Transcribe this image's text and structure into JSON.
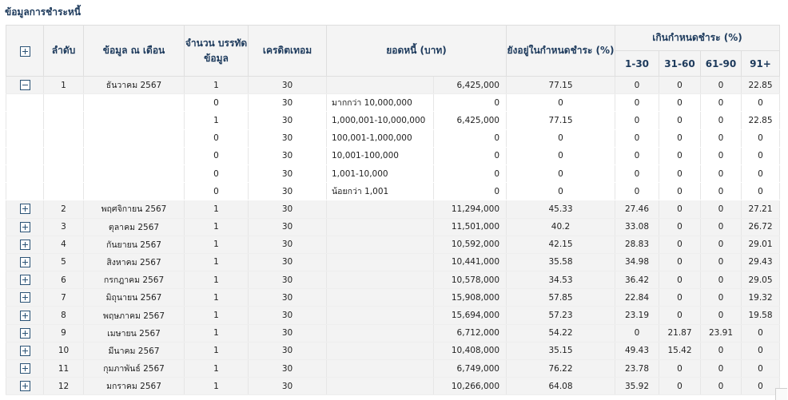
{
  "title": "ข้อมูลการชำระหนี้",
  "headers": {
    "seq": "ลำดับ",
    "month": "ข้อมูล ณ เดือน",
    "count": "จำนวน บรรทัดข้อมูล",
    "credit": "เครดิตเทอม",
    "amount": "ยอดหนี้ (บาท)",
    "on_time": "ยังอยู่ในกำหนดชำระ (%)",
    "overdue": "เกินกำหนดชำระ (%)",
    "b1": "1-30",
    "b2": "31-60",
    "b3": "61-90",
    "b4": "91+"
  },
  "rows": [
    {
      "seq": "1",
      "month": "ธันวาคม 2567",
      "count": "1",
      "credit": "30",
      "amount": "6,425,000",
      "on_time": "77.15",
      "b1": "0",
      "b2": "0",
      "b3": "0",
      "b4": "22.85",
      "expanded": true,
      "details": [
        {
          "count": "0",
          "credit": "30",
          "range": "มากกว่า 10,000,000",
          "amount": "0",
          "on_time": "0",
          "b1": "0",
          "b2": "0",
          "b3": "0",
          "b4": "0"
        },
        {
          "count": "1",
          "credit": "30",
          "range": "1,000,001-10,000,000",
          "amount": "6,425,000",
          "on_time": "77.15",
          "b1": "0",
          "b2": "0",
          "b3": "0",
          "b4": "22.85"
        },
        {
          "count": "0",
          "credit": "30",
          "range": "100,001-1,000,000",
          "amount": "0",
          "on_time": "0",
          "b1": "0",
          "b2": "0",
          "b3": "0",
          "b4": "0"
        },
        {
          "count": "0",
          "credit": "30",
          "range": "10,001-100,000",
          "amount": "0",
          "on_time": "0",
          "b1": "0",
          "b2": "0",
          "b3": "0",
          "b4": "0"
        },
        {
          "count": "0",
          "credit": "30",
          "range": "1,001-10,000",
          "amount": "0",
          "on_time": "0",
          "b1": "0",
          "b2": "0",
          "b3": "0",
          "b4": "0"
        },
        {
          "count": "0",
          "credit": "30",
          "range": "น้อยกว่า 1,001",
          "amount": "0",
          "on_time": "0",
          "b1": "0",
          "b2": "0",
          "b3": "0",
          "b4": "0"
        }
      ]
    },
    {
      "seq": "2",
      "month": "พฤศจิกายน 2567",
      "count": "1",
      "credit": "30",
      "amount": "11,294,000",
      "on_time": "45.33",
      "b1": "27.46",
      "b2": "0",
      "b3": "0",
      "b4": "27.21"
    },
    {
      "seq": "3",
      "month": "ตุลาคม 2567",
      "count": "1",
      "credit": "30",
      "amount": "11,501,000",
      "on_time": "40.2",
      "b1": "33.08",
      "b2": "0",
      "b3": "0",
      "b4": "26.72"
    },
    {
      "seq": "4",
      "month": "กันยายน 2567",
      "count": "1",
      "credit": "30",
      "amount": "10,592,000",
      "on_time": "42.15",
      "b1": "28.83",
      "b2": "0",
      "b3": "0",
      "b4": "29.01"
    },
    {
      "seq": "5",
      "month": "สิงหาคม 2567",
      "count": "1",
      "credit": "30",
      "amount": "10,441,000",
      "on_time": "35.58",
      "b1": "34.98",
      "b2": "0",
      "b3": "0",
      "b4": "29.43"
    },
    {
      "seq": "6",
      "month": "กรกฎาคม 2567",
      "count": "1",
      "credit": "30",
      "amount": "10,578,000",
      "on_time": "34.53",
      "b1": "36.42",
      "b2": "0",
      "b3": "0",
      "b4": "29.05"
    },
    {
      "seq": "7",
      "month": "มิถุนายน 2567",
      "count": "1",
      "credit": "30",
      "amount": "15,908,000",
      "on_time": "57.85",
      "b1": "22.84",
      "b2": "0",
      "b3": "0",
      "b4": "19.32"
    },
    {
      "seq": "8",
      "month": "พฤษภาคม 2567",
      "count": "1",
      "credit": "30",
      "amount": "15,694,000",
      "on_time": "57.23",
      "b1": "23.19",
      "b2": "0",
      "b3": "0",
      "b4": "19.58"
    },
    {
      "seq": "9",
      "month": "เมษายน 2567",
      "count": "1",
      "credit": "30",
      "amount": "6,712,000",
      "on_time": "54.22",
      "b1": "0",
      "b2": "21.87",
      "b3": "23.91",
      "b4": "0"
    },
    {
      "seq": "10",
      "month": "มีนาคม 2567",
      "count": "1",
      "credit": "30",
      "amount": "10,408,000",
      "on_time": "35.15",
      "b1": "49.43",
      "b2": "15.42",
      "b3": "0",
      "b4": "0"
    },
    {
      "seq": "11",
      "month": "กุมภาพันธ์ 2567",
      "count": "1",
      "credit": "30",
      "amount": "6,749,000",
      "on_time": "76.22",
      "b1": "23.78",
      "b2": "0",
      "b3": "0",
      "b4": "0"
    },
    {
      "seq": "12",
      "month": "มกราคม 2567",
      "count": "1",
      "credit": "30",
      "amount": "10,266,000",
      "on_time": "64.08",
      "b1": "35.92",
      "b2": "0",
      "b3": "0",
      "b4": "0"
    }
  ]
}
